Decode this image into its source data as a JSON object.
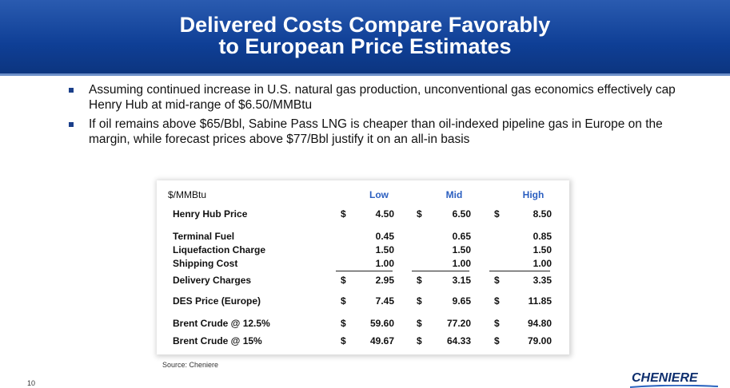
{
  "header": {
    "title_lines": [
      "Delivered Costs Compare Favorably",
      "to European Price Estimates"
    ]
  },
  "bullets": [
    "Assuming continued increase in U.S. natural gas production, unconventional gas economics effectively cap Henry Hub at mid-range of $6.50/MMBtu",
    "If oil remains above $65/Bbl, Sabine Pass LNG is cheaper than oil-indexed pipeline gas in Europe on the margin, while forecast prices above $77/Bbl justify it on an all-in basis"
  ],
  "table": {
    "unit": "$/MMBtu",
    "columns": [
      "Low",
      "Mid",
      "High"
    ],
    "currency": "$",
    "rows": [
      {
        "label": "Henry Hub Price",
        "dollar": true,
        "values": [
          "4.50",
          "6.50",
          "8.50"
        ]
      },
      {
        "label": "Terminal Fuel",
        "dollar": false,
        "values": [
          "0.45",
          "0.65",
          "0.85"
        ]
      },
      {
        "label": "Liquefaction Charge",
        "dollar": false,
        "values": [
          "1.50",
          "1.50",
          "1.50"
        ]
      },
      {
        "label": "Shipping Cost",
        "dollar": false,
        "values": [
          "1.00",
          "1.00",
          "1.00"
        ],
        "underline": true
      },
      {
        "label": "Delivery Charges",
        "dollar": true,
        "values": [
          "2.95",
          "3.15",
          "3.35"
        ]
      },
      {
        "label": "DES Price (Europe)",
        "dollar": true,
        "values": [
          "7.45",
          "9.65",
          "11.85"
        ]
      },
      {
        "label": "Brent Crude @ 12.5%",
        "dollar": true,
        "values": [
          "59.60",
          "77.20",
          "94.80"
        ]
      },
      {
        "label": "Brent Crude @ 15%",
        "dollar": true,
        "values": [
          "49.67",
          "64.33",
          "79.00"
        ]
      }
    ]
  },
  "source": "Source: Cheniere",
  "page_number": "10",
  "logo": "CHENIERE"
}
